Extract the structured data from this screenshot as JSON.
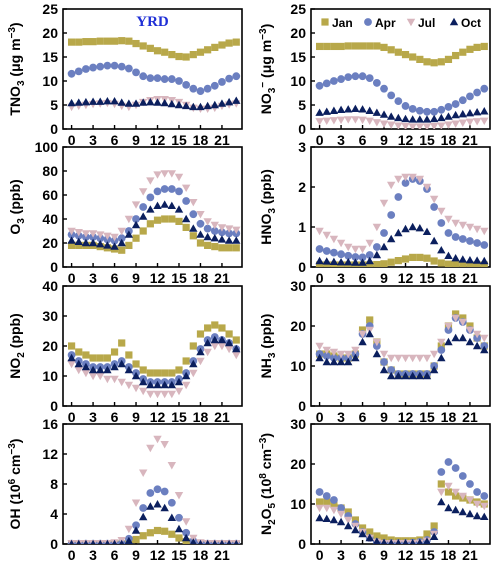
{
  "figure": {
    "region_label": "YRD",
    "colors": {
      "Jan": "#b8a84a",
      "Apr": "#6b7fc0",
      "Jul": "#d8b6be",
      "Oct": "#0b1f5e",
      "region_label": "#1f2fd6"
    },
    "legend_placement": "top-right of NO3- panel",
    "marker_shapes": {
      "Jan": "square",
      "Apr": "circle",
      "Jul": "triangle-down",
      "Oct": "triangle-up"
    }
  },
  "chart_data": [
    {
      "type": "scatter",
      "ylabel": "TNO3 (μg m−3)",
      "xticks": [
        "0",
        "3",
        "6",
        "9",
        "12",
        "15",
        "18",
        "21"
      ],
      "xlim": [
        -1.2,
        23.8
      ],
      "ylim": [
        0,
        25
      ],
      "yticks": [
        "0",
        "5",
        "10",
        "15",
        "20",
        "25"
      ],
      "ytick_values": [
        0,
        5,
        10,
        15,
        20,
        25
      ],
      "series": [
        {
          "name": "Jan",
          "values": [
            18.1,
            18.1,
            18.2,
            18.2,
            18.3,
            18.3,
            18.3,
            18.4,
            18.3,
            17.8,
            17.3,
            16.8,
            16.3,
            16.0,
            15.5,
            15.1,
            15.0,
            15.5,
            16.0,
            16.5,
            17.0,
            17.5,
            17.9,
            18.1
          ]
        },
        {
          "name": "Apr",
          "values": [
            11.5,
            12.0,
            12.5,
            12.8,
            13.0,
            13.2,
            13.2,
            13.0,
            12.6,
            11.8,
            11.0,
            10.6,
            10.6,
            10.4,
            10.4,
            10.0,
            9.2,
            8.4,
            7.9,
            8.4,
            9.0,
            9.8,
            10.5,
            11.0
          ]
        },
        {
          "name": "Jul",
          "values": [
            4.6,
            4.8,
            5.0,
            5.2,
            5.3,
            5.4,
            5.2,
            4.8,
            4.6,
            5.0,
            5.6,
            6.0,
            6.2,
            6.2,
            6.0,
            5.6,
            5.0,
            4.4,
            4.2,
            4.2,
            4.4,
            4.8,
            5.1,
            5.3
          ]
        },
        {
          "name": "Oct",
          "values": [
            5.4,
            5.5,
            5.6,
            5.7,
            5.7,
            5.8,
            5.8,
            5.5,
            5.3,
            5.3,
            5.5,
            5.6,
            5.5,
            5.4,
            5.2,
            5.0,
            4.8,
            4.6,
            4.6,
            4.8,
            5.0,
            5.3,
            5.6,
            5.9
          ]
        }
      ]
    },
    {
      "type": "scatter",
      "ylabel": "NO3− (μg m−3)",
      "xticks": [
        "0",
        "3",
        "6",
        "9",
        "12",
        "15",
        "18",
        "21"
      ],
      "xlim": [
        -1.2,
        23.8
      ],
      "ylim": [
        0,
        25
      ],
      "yticks": [
        "0",
        "5",
        "10",
        "15",
        "20",
        "25"
      ],
      "ytick_values": [
        0,
        5,
        10,
        15,
        20,
        25
      ],
      "legend": [
        "Jan",
        "Apr",
        "Jul",
        "Oct"
      ],
      "series": [
        {
          "name": "Jan",
          "values": [
            17.2,
            17.2,
            17.2,
            17.2,
            17.3,
            17.3,
            17.3,
            17.3,
            17.3,
            17.0,
            16.5,
            16.0,
            15.5,
            15.0,
            14.5,
            14.0,
            13.8,
            14.0,
            14.5,
            15.3,
            16.0,
            16.6,
            17.0,
            17.2
          ]
        },
        {
          "name": "Apr",
          "values": [
            9.0,
            9.5,
            10.0,
            10.4,
            10.8,
            11.0,
            11.0,
            10.6,
            9.6,
            8.4,
            7.0,
            5.8,
            4.8,
            4.2,
            3.8,
            3.6,
            3.6,
            4.0,
            4.6,
            5.2,
            6.0,
            6.8,
            7.6,
            8.4
          ]
        },
        {
          "name": "Jul",
          "values": [
            1.6,
            1.7,
            1.8,
            1.9,
            2.0,
            2.0,
            1.9,
            1.7,
            1.4,
            1.1,
            0.9,
            0.7,
            0.6,
            0.5,
            0.5,
            0.5,
            0.6,
            0.7,
            0.9,
            1.1,
            1.3,
            1.5,
            1.6,
            1.7
          ]
        },
        {
          "name": "Oct",
          "values": [
            3.4,
            3.6,
            3.8,
            4.0,
            4.1,
            4.2,
            4.1,
            3.8,
            3.4,
            3.0,
            2.6,
            2.3,
            2.1,
            2.0,
            2.0,
            2.0,
            2.1,
            2.3,
            2.6,
            2.9,
            3.1,
            3.3,
            3.5,
            3.7
          ]
        }
      ]
    },
    {
      "type": "scatter",
      "ylabel": "O3 (ppb)",
      "xticks": [
        "0",
        "3",
        "6",
        "9",
        "12",
        "15",
        "18",
        "21"
      ],
      "xlim": [
        -1.2,
        23.8
      ],
      "ylim": [
        0,
        100
      ],
      "yticks": [
        "0",
        "20",
        "40",
        "60",
        "80",
        "100"
      ],
      "ytick_values": [
        0,
        20,
        40,
        60,
        80,
        100
      ],
      "series": [
        {
          "name": "Jan",
          "values": [
            18,
            18,
            18,
            18,
            17,
            16,
            15,
            14,
            18,
            24,
            30,
            36,
            39,
            40,
            40,
            38,
            33,
            26,
            20,
            18,
            17,
            16,
            16,
            16
          ]
        },
        {
          "name": "Apr",
          "values": [
            27,
            26,
            25,
            25,
            24,
            23,
            22,
            24,
            30,
            40,
            50,
            58,
            63,
            65,
            65,
            63,
            55,
            44,
            36,
            32,
            30,
            29,
            28,
            28
          ]
        },
        {
          "name": "Jul",
          "values": [
            30,
            29,
            28,
            28,
            27,
            26,
            25,
            30,
            40,
            52,
            63,
            72,
            77,
            78,
            78,
            75,
            66,
            54,
            44,
            38,
            35,
            33,
            32,
            31
          ]
        },
        {
          "name": "Oct",
          "values": [
            22,
            21,
            20,
            20,
            19,
            18,
            17,
            20,
            27,
            35,
            42,
            48,
            51,
            52,
            51,
            48,
            40,
            32,
            27,
            25,
            24,
            23,
            22,
            22
          ]
        }
      ]
    },
    {
      "type": "scatter",
      "ylabel": "HNO3 (ppb)",
      "xticks": [
        "0",
        "3",
        "6",
        "9",
        "12",
        "15",
        "18",
        "21"
      ],
      "xlim": [
        -1.2,
        23.8
      ],
      "ylim": [
        0,
        3
      ],
      "yticks": [
        "0",
        "1",
        "2",
        "3"
      ],
      "ytick_values": [
        0,
        1,
        2,
        3
      ],
      "series": [
        {
          "name": "Jan",
          "values": [
            0.05,
            0.05,
            0.05,
            0.05,
            0.05,
            0.05,
            0.05,
            0.05,
            0.06,
            0.08,
            0.12,
            0.16,
            0.2,
            0.24,
            0.24,
            0.22,
            0.15,
            0.1,
            0.07,
            0.06,
            0.05,
            0.05,
            0.05,
            0.05
          ]
        },
        {
          "name": "Apr",
          "values": [
            0.45,
            0.4,
            0.36,
            0.32,
            0.28,
            0.25,
            0.24,
            0.3,
            0.5,
            0.85,
            1.3,
            1.75,
            2.1,
            2.2,
            2.15,
            1.95,
            1.5,
            1.1,
            0.85,
            0.75,
            0.7,
            0.65,
            0.6,
            0.55
          ]
        },
        {
          "name": "Jul",
          "values": [
            0.9,
            0.8,
            0.7,
            0.6,
            0.5,
            0.45,
            0.45,
            0.6,
            1.0,
            1.6,
            2.05,
            2.2,
            2.25,
            2.25,
            2.2,
            2.0,
            1.7,
            1.4,
            1.2,
            1.1,
            1.05,
            1.0,
            0.95,
            0.9
          ]
        },
        {
          "name": "Oct",
          "values": [
            0.15,
            0.14,
            0.13,
            0.12,
            0.12,
            0.11,
            0.11,
            0.15,
            0.3,
            0.5,
            0.7,
            0.85,
            0.95,
            1.0,
            0.97,
            0.88,
            0.65,
            0.42,
            0.28,
            0.22,
            0.19,
            0.17,
            0.16,
            0.15
          ]
        }
      ]
    },
    {
      "type": "scatter",
      "ylabel": "NO2 (ppb)",
      "xticks": [
        "0",
        "3",
        "6",
        "9",
        "12",
        "15",
        "18",
        "21"
      ],
      "xlim": [
        -1.2,
        23.8
      ],
      "ylim": [
        0,
        40
      ],
      "yticks": [
        "0",
        "10",
        "20",
        "30",
        "40"
      ],
      "ytick_values": [
        0,
        10,
        20,
        30,
        40
      ],
      "series": [
        {
          "name": "Jan",
          "values": [
            20,
            18,
            17,
            16,
            16,
            16,
            18,
            21,
            17,
            14,
            12,
            11,
            11,
            11,
            11,
            12,
            15,
            20,
            24,
            26,
            27,
            26,
            24,
            22
          ]
        },
        {
          "name": "Apr",
          "values": [
            17,
            15,
            14,
            13,
            13,
            13,
            14,
            15,
            13,
            11,
            9,
            8,
            8,
            8,
            8,
            9,
            11,
            15,
            19,
            22,
            23,
            22,
            21,
            19
          ]
        },
        {
          "name": "Jul",
          "values": [
            14,
            12,
            11,
            10,
            10,
            9,
            9,
            8,
            7,
            6,
            5,
            4,
            4,
            4,
            4,
            5,
            7,
            11,
            15,
            18,
            20,
            20,
            19,
            17
          ]
        },
        {
          "name": "Oct",
          "values": [
            16,
            14,
            13,
            12,
            12,
            12,
            13,
            14,
            12,
            10,
            8,
            7,
            7,
            7,
            7,
            8,
            10,
            14,
            18,
            21,
            22,
            22,
            21,
            19
          ]
        }
      ]
    },
    {
      "type": "scatter",
      "ylabel": "NH3 (ppb)",
      "xticks": [
        "0",
        "3",
        "6",
        "9",
        "12",
        "15",
        "18",
        "21"
      ],
      "xlim": [
        -1.2,
        23.8
      ],
      "ylim": [
        0,
        30
      ],
      "yticks": [
        "0",
        "10",
        "20",
        "30"
      ],
      "ytick_values": [
        0,
        10,
        20,
        30
      ],
      "series": [
        {
          "name": "Jan",
          "values": [
            13,
            13,
            12.5,
            12,
            12,
            13,
            19,
            21.5,
            16,
            11,
            9,
            8,
            8,
            8,
            8,
            8,
            10,
            15,
            20,
            23,
            22,
            20,
            17,
            15
          ]
        },
        {
          "name": "Apr",
          "values": [
            13,
            12.5,
            12,
            12,
            12,
            13,
            18,
            20,
            15,
            11,
            9,
            8,
            8,
            8,
            8,
            8,
            10,
            14,
            19,
            22,
            21,
            19,
            17,
            15
          ]
        },
        {
          "name": "Jul",
          "values": [
            15,
            14,
            13.5,
            13,
            13,
            14,
            18,
            19,
            16,
            13,
            12,
            12,
            12,
            12,
            12,
            12,
            13,
            16,
            20,
            22,
            21,
            19,
            18,
            17
          ]
        },
        {
          "name": "Oct",
          "values": [
            12,
            11,
            11,
            11,
            11,
            12,
            16,
            18,
            13,
            9,
            7.5,
            7.5,
            7.5,
            7.5,
            7.5,
            7.5,
            9,
            12,
            16,
            17,
            17,
            16,
            15,
            14
          ]
        }
      ]
    },
    {
      "type": "scatter",
      "ylabel": "OH (106 cm−3)",
      "xticks": [
        "0",
        "3",
        "6",
        "9",
        "12",
        "15",
        "18",
        "21"
      ],
      "xlim": [
        -1.2,
        23.8
      ],
      "ylim": [
        0,
        16
      ],
      "yticks": [
        "0",
        "4",
        "8",
        "12",
        "16"
      ],
      "ytick_values": [
        0,
        4,
        8,
        12,
        16
      ],
      "series": [
        {
          "name": "Jan",
          "values": [
            0,
            0,
            0,
            0,
            0,
            0,
            0,
            0,
            0.2,
            0.6,
            1.1,
            1.5,
            1.8,
            1.7,
            1.3,
            0.8,
            0.3,
            0.05,
            0,
            0,
            0,
            0,
            0,
            0
          ]
        },
        {
          "name": "Apr",
          "values": [
            0.05,
            0.05,
            0.05,
            0.05,
            0.05,
            0.05,
            0.05,
            0.1,
            0.7,
            2.5,
            4.8,
            6.8,
            7.3,
            7.0,
            5.5,
            3.5,
            1.5,
            0.4,
            0.1,
            0.05,
            0.05,
            0.05,
            0.05,
            0.05
          ]
        },
        {
          "name": "Jul",
          "values": [
            0.1,
            0.1,
            0.1,
            0.1,
            0.1,
            0.1,
            0.2,
            0.5,
            2.0,
            5.5,
            9.5,
            12.8,
            14.0,
            13.3,
            10.5,
            6.5,
            3.0,
            0.8,
            0.2,
            0.1,
            0.1,
            0.1,
            0.1,
            0.1
          ]
        },
        {
          "name": "Oct",
          "values": [
            0,
            0,
            0,
            0,
            0,
            0,
            0,
            0,
            0.4,
            1.8,
            3.6,
            5.0,
            5.3,
            4.8,
            3.5,
            2.0,
            0.8,
            0.2,
            0,
            0,
            0,
            0,
            0,
            0
          ]
        }
      ]
    },
    {
      "type": "scatter",
      "ylabel": "N2O5 (108 cm−3)",
      "xticks": [
        "0",
        "3",
        "6",
        "9",
        "12",
        "15",
        "18",
        "21"
      ],
      "xlim": [
        -1.2,
        23.8
      ],
      "ylim": [
        0,
        30
      ],
      "yticks": [
        "0",
        "10",
        "20",
        "30"
      ],
      "ytick_values": [
        0,
        10,
        20,
        30
      ],
      "series": [
        {
          "name": "Jan",
          "values": [
            10.5,
            10.5,
            10,
            9,
            8,
            6,
            4,
            3,
            2,
            1.5,
            1,
            0.8,
            0.8,
            0.8,
            1,
            2.5,
            4.5,
            15,
            13,
            12,
            11.5,
            11,
            10.5,
            10
          ]
        },
        {
          "name": "Apr",
          "values": [
            13,
            12,
            11,
            9,
            7,
            5,
            3,
            1.5,
            0.5,
            0.2,
            0.2,
            0.2,
            0.2,
            0.3,
            0.5,
            1,
            3,
            18,
            20.5,
            19,
            17,
            15,
            13,
            12
          ]
        },
        {
          "name": "Jul",
          "values": [
            9,
            9,
            8.5,
            7.5,
            6,
            4.5,
            3,
            1.5,
            0.5,
            0.2,
            0.2,
            0.2,
            0.2,
            0.2,
            0.3,
            0.8,
            2.5,
            13,
            14.5,
            13,
            12,
            11,
            10,
            9.5
          ]
        },
        {
          "name": "Oct",
          "values": [
            6.5,
            6.3,
            6,
            5.5,
            4.5,
            3.5,
            2.5,
            1.5,
            0.6,
            0.3,
            0.2,
            0.2,
            0.2,
            0.2,
            0.3,
            0.6,
            1.8,
            10.5,
            9,
            8.5,
            8,
            7.5,
            7,
            6.8
          ]
        }
      ]
    }
  ]
}
